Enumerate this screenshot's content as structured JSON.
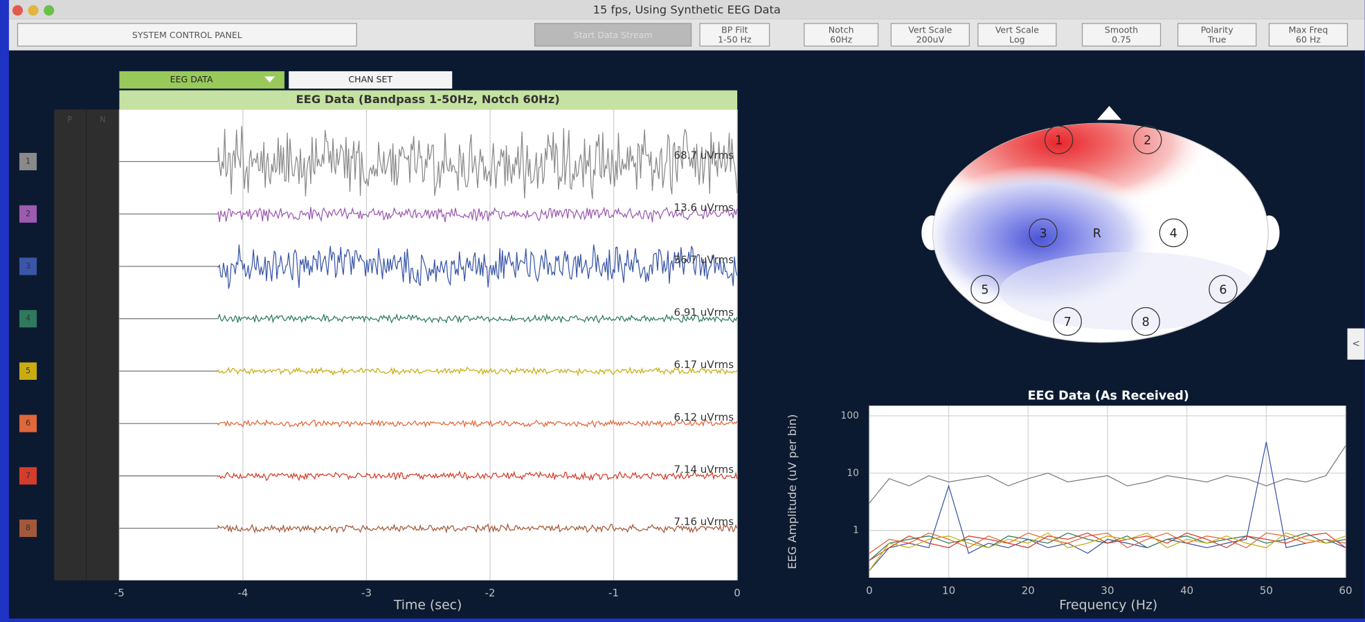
{
  "window": {
    "title": "15 fps, Using Synthetic EEG Data"
  },
  "control_panel": {
    "label": "SYSTEM CONTROL PANEL",
    "start_button": "Start Data Stream",
    "buttons": [
      {
        "label": "BP Filt",
        "value": "1-50 Hz"
      },
      {
        "label": "Notch",
        "value": "60Hz"
      },
      {
        "label": "Vert Scale",
        "value": "200uV"
      },
      {
        "label": "Vert Scale",
        "value": "Log"
      },
      {
        "label": "Smooth",
        "value": "0.75"
      },
      {
        "label": "Polarity",
        "value": "True"
      },
      {
        "label": "Max Freq",
        "value": "60 Hz"
      }
    ]
  },
  "tabs": [
    "EEG DATA",
    "CHAN SET"
  ],
  "side_tab": "<",
  "head_plot": {
    "electrodes": [
      "1",
      "2",
      "3",
      "4",
      "5",
      "6",
      "7",
      "8"
    ],
    "reference": "R"
  },
  "chart_data": [
    {
      "type": "timeseries",
      "title": "EEG Data (Bandpass 1-50Hz, Notch 60Hz)",
      "x_label": "Time (sec)",
      "columns": [
        "P",
        "N"
      ],
      "xlim": [
        -5,
        0
      ],
      "xticks": [
        -5,
        -4,
        -3,
        -2,
        -1,
        0
      ],
      "grid": true,
      "channels": [
        {
          "name": "1",
          "color": "#8a8a8a",
          "rms": 68.7,
          "rms_label": "68.7 uVrms"
        },
        {
          "name": "2",
          "color": "#9c5bb0",
          "rms": 13.6,
          "rms_label": "13.6 uVrms"
        },
        {
          "name": "3",
          "color": "#3a56a8",
          "rms": 36.7,
          "rms_label": "36.7 uVrms"
        },
        {
          "name": "4",
          "color": "#2f7a5e",
          "rms": 6.91,
          "rms_label": "6.91 uVrms"
        },
        {
          "name": "5",
          "color": "#c9ad10",
          "rms": 6.17,
          "rms_label": "6.17 uVrms"
        },
        {
          "name": "6",
          "color": "#e0673a",
          "rms": 6.12,
          "rms_label": "6.12 uVrms"
        },
        {
          "name": "7",
          "color": "#d43c2c",
          "rms": 7.14,
          "rms_label": "7.14 uVrms"
        },
        {
          "name": "8",
          "color": "#a3583a",
          "rms": 7.16,
          "rms_label": "7.16 uVrms"
        }
      ]
    },
    {
      "type": "line",
      "title": "EEG Data (As Received)",
      "x_label": "Frequency (Hz)",
      "y_label": "EEG Amplitude (uV per bin)",
      "x": [
        0,
        2.5,
        5,
        7.5,
        10,
        12.5,
        15,
        17.5,
        20,
        22.5,
        25,
        27.5,
        30,
        32.5,
        35,
        37.5,
        40,
        42.5,
        45,
        47.5,
        50,
        52.5,
        55,
        57.5,
        60
      ],
      "xlim": [
        0,
        60
      ],
      "xticks": [
        0,
        10,
        20,
        30,
        40,
        50,
        60
      ],
      "ylim": [
        0.15,
        150
      ],
      "yticks": [
        1,
        10,
        100
      ],
      "log_y": true,
      "grid": true,
      "series": [
        {
          "color": "#7a7a7a",
          "values": [
            3,
            8,
            6,
            9,
            7,
            8,
            9,
            6,
            8,
            10,
            7,
            8,
            9,
            6,
            7,
            9,
            8,
            7,
            9,
            8,
            6,
            8,
            7,
            9,
            30
          ]
        },
        {
          "color": "#3a56a8",
          "values": [
            0.2,
            0.5,
            0.6,
            0.5,
            6,
            0.4,
            0.6,
            0.5,
            0.7,
            0.5,
            0.6,
            0.4,
            0.7,
            0.6,
            0.5,
            0.7,
            0.6,
            0.5,
            0.6,
            0.7,
            35,
            0.5,
            0.6,
            0.7,
            0.5
          ]
        },
        {
          "color": "#2f7a5e",
          "values": [
            0.3,
            0.6,
            0.7,
            0.8,
            0.6,
            0.7,
            0.5,
            0.8,
            0.7,
            0.6,
            0.9,
            0.7,
            0.6,
            0.8,
            0.5,
            0.7,
            0.8,
            0.6,
            0.7,
            0.8,
            0.6,
            0.7,
            0.9,
            0.6,
            0.7
          ]
        },
        {
          "color": "#e0673a",
          "values": [
            0.4,
            0.7,
            0.6,
            0.9,
            0.7,
            0.5,
            0.8,
            0.6,
            0.9,
            0.7,
            0.6,
            0.8,
            0.9,
            0.5,
            0.7,
            0.9,
            0.6,
            0.8,
            0.7,
            0.5,
            0.9,
            0.8,
            0.6,
            0.7,
            0.6
          ]
        },
        {
          "color": "#d43c2c",
          "values": [
            0.3,
            0.5,
            0.8,
            0.6,
            0.5,
            0.8,
            0.7,
            0.6,
            0.5,
            0.8,
            0.7,
            0.9,
            0.6,
            0.7,
            0.8,
            0.6,
            0.9,
            0.7,
            0.5,
            0.8,
            0.7,
            0.6,
            0.8,
            0.9,
            0.5
          ]
        },
        {
          "color": "#c9ad10",
          "values": [
            0.2,
            0.6,
            0.5,
            0.7,
            0.8,
            0.6,
            0.5,
            0.7,
            0.6,
            0.9,
            0.5,
            0.6,
            0.8,
            0.7,
            0.9,
            0.5,
            0.7,
            0.6,
            0.8,
            0.6,
            0.5,
            0.9,
            0.7,
            0.6,
            0.8
          ]
        }
      ]
    }
  ]
}
